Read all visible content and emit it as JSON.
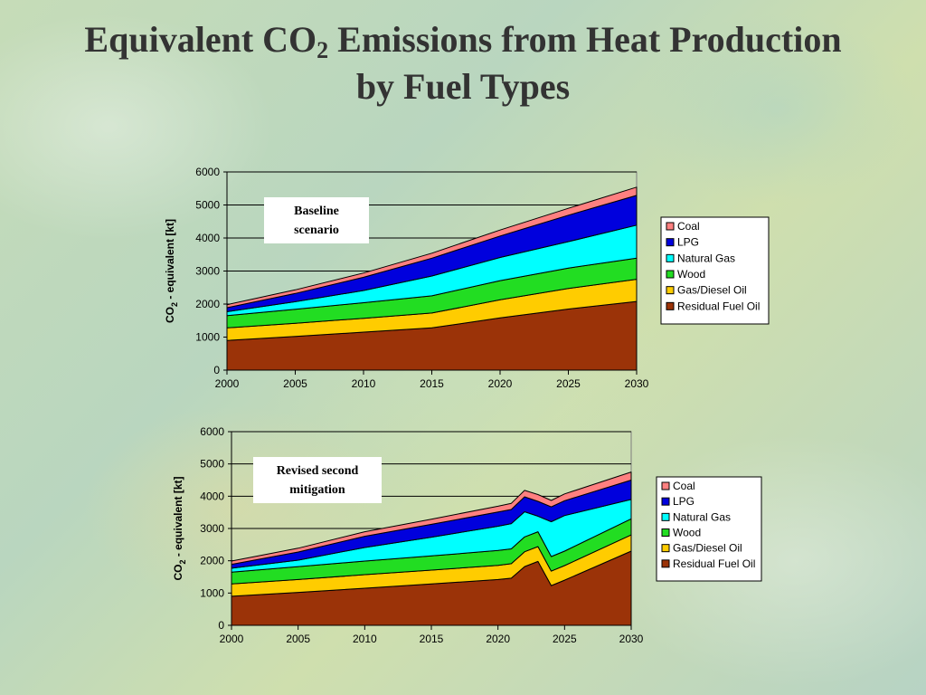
{
  "slide": {
    "title_part1": "Equivalent CO",
    "title_sub": "2",
    "title_part2": " Emissions from Heat Production",
    "title_line2": "by Fuel Types"
  },
  "chart_data": [
    {
      "type": "area",
      "stacked": true,
      "annotation": [
        "Baseline",
        "scenario"
      ],
      "ylabel_main": "CO",
      "ylabel_sub": "2",
      "ylabel_rest": " - equivalent [kt]",
      "xlim": [
        2000,
        2030
      ],
      "ylim": [
        0,
        6000
      ],
      "xticks": [
        "2000",
        "2005",
        "2010",
        "2015",
        "2020",
        "2025",
        "2030"
      ],
      "yticks": [
        "0",
        "1000",
        "2000",
        "3000",
        "4000",
        "5000",
        "6000"
      ],
      "grid": true,
      "legend_position": "right",
      "x": [
        2000,
        2005,
        2010,
        2015,
        2020,
        2025,
        2030
      ],
      "series": [
        {
          "name": "Residual Fuel Oil",
          "color": "#9b3308",
          "values": [
            900,
            1020,
            1150,
            1280,
            1580,
            1850,
            2080
          ]
        },
        {
          "name": "Gas/Diesel Oil",
          "color": "#ffcc00",
          "values": [
            380,
            400,
            420,
            450,
            550,
            620,
            670
          ]
        },
        {
          "name": "Wood",
          "color": "#22dd22",
          "values": [
            370,
            420,
            470,
            520,
            580,
            620,
            640
          ]
        },
        {
          "name": "Natural Gas",
          "color": "#00ffff",
          "values": [
            120,
            230,
            370,
            600,
            700,
            800,
            1000
          ]
        },
        {
          "name": "LPG",
          "color": "#0000dd",
          "values": [
            120,
            250,
            400,
            540,
            650,
            800,
            900
          ]
        },
        {
          "name": "Coal",
          "color": "#ff8080",
          "values": [
            90,
            110,
            130,
            150,
            180,
            210,
            250
          ]
        }
      ]
    },
    {
      "type": "area",
      "stacked": true,
      "annotation": [
        "Revised second",
        "mitigation"
      ],
      "ylabel_main": "CO",
      "ylabel_sub": "2",
      "ylabel_rest": " - equivalent [kt]",
      "xlim": [
        2000,
        2030
      ],
      "ylim": [
        0,
        6000
      ],
      "xticks": [
        "2000",
        "2005",
        "2010",
        "2015",
        "2020",
        "2025",
        "2030"
      ],
      "yticks": [
        "0",
        "1000",
        "2000",
        "3000",
        "4000",
        "5000",
        "6000"
      ],
      "grid": true,
      "legend_position": "right",
      "x": [
        2000,
        2005,
        2010,
        2015,
        2020,
        2021,
        2022,
        2023,
        2024,
        2025,
        2030
      ],
      "series": [
        {
          "name": "Residual Fuel Oil",
          "color": "#9b3308",
          "values": [
            900,
            1020,
            1150,
            1280,
            1420,
            1460,
            1820,
            1980,
            1230,
            1400,
            2300
          ]
        },
        {
          "name": "Gas/Diesel Oil",
          "color": "#ffcc00",
          "values": [
            380,
            400,
            420,
            430,
            440,
            450,
            460,
            460,
            450,
            450,
            500
          ]
        },
        {
          "name": "Wood",
          "color": "#22dd22",
          "values": [
            370,
            400,
            420,
            440,
            460,
            460,
            460,
            460,
            450,
            450,
            500
          ]
        },
        {
          "name": "Natural Gas",
          "color": "#00ffff",
          "values": [
            120,
            200,
            420,
            580,
            750,
            780,
            780,
            480,
            1080,
            1100,
            600
          ]
        },
        {
          "name": "LPG",
          "color": "#0000dd",
          "values": [
            120,
            250,
            350,
            400,
            440,
            440,
            460,
            460,
            460,
            460,
            600
          ]
        },
        {
          "name": "Coal",
          "color": "#ff8080",
          "values": [
            100,
            120,
            140,
            160,
            180,
            190,
            200,
            210,
            200,
            210,
            250
          ]
        }
      ]
    }
  ]
}
